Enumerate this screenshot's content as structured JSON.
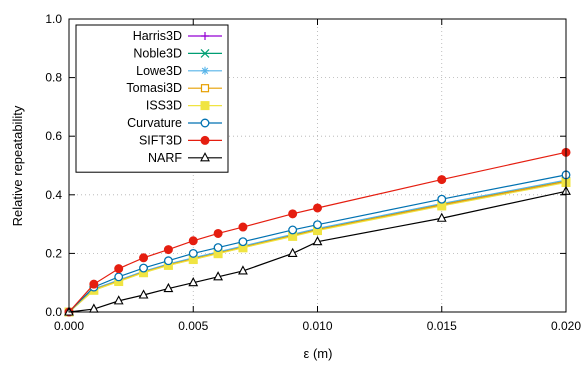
{
  "chart_data": {
    "type": "line",
    "xlabel": "ε (m)",
    "ylabel": "Relative repeatability",
    "xlim": [
      0,
      0.02
    ],
    "ylim": [
      0,
      1
    ],
    "xticks": [
      "0.000",
      "0.005",
      "0.010",
      "0.015",
      "0.020"
    ],
    "xtick_values": [
      0,
      0.005,
      0.01,
      0.015,
      0.02
    ],
    "yticks": [
      "0.0",
      "0.2",
      "0.4",
      "0.6",
      "0.8",
      "1.0"
    ],
    "ytick_values": [
      0,
      0.2,
      0.4,
      0.6,
      0.8,
      1.0
    ],
    "grid": true,
    "legend_position": "top-left",
    "x": [
      0,
      0.001,
      0.002,
      0.003,
      0.004,
      0.005,
      0.006,
      0.007,
      0.009,
      0.01,
      0.015,
      0.02
    ],
    "series": [
      {
        "name": "Harris3D",
        "color": "#9400d3",
        "marker": "plus",
        "values": [
          0,
          0.075,
          0.105,
          0.135,
          0.16,
          0.18,
          0.2,
          0.22,
          0.26,
          0.28,
          0.365,
          0.445
        ]
      },
      {
        "name": "Noble3D",
        "color": "#009e73",
        "marker": "cross",
        "values": [
          0,
          0.077,
          0.107,
          0.137,
          0.162,
          0.182,
          0.202,
          0.222,
          0.262,
          0.282,
          0.367,
          0.447
        ]
      },
      {
        "name": "Lowe3D",
        "color": "#56b4e9",
        "marker": "star",
        "values": [
          0,
          0.079,
          0.109,
          0.139,
          0.164,
          0.185,
          0.205,
          0.225,
          0.265,
          0.285,
          0.37,
          0.45
        ]
      },
      {
        "name": "Tomasi3D",
        "color": "#e69f00",
        "marker": "square-open",
        "values": [
          0,
          0.076,
          0.106,
          0.136,
          0.161,
          0.181,
          0.201,
          0.221,
          0.261,
          0.281,
          0.366,
          0.446
        ]
      },
      {
        "name": "ISS3D",
        "color": "#f0e442",
        "marker": "square-filled",
        "values": [
          0,
          0.074,
          0.104,
          0.134,
          0.159,
          0.179,
          0.199,
          0.219,
          0.258,
          0.278,
          0.362,
          0.442
        ]
      },
      {
        "name": "Curvature",
        "color": "#0072b2",
        "marker": "circle-open",
        "values": [
          0,
          0.085,
          0.12,
          0.15,
          0.175,
          0.2,
          0.22,
          0.24,
          0.28,
          0.298,
          0.385,
          0.468
        ]
      },
      {
        "name": "SIFT3D",
        "color": "#e51e10",
        "marker": "circle-filled",
        "values": [
          0,
          0.095,
          0.148,
          0.185,
          0.213,
          0.243,
          0.268,
          0.29,
          0.335,
          0.355,
          0.452,
          0.545
        ]
      },
      {
        "name": "NARF",
        "color": "#000000",
        "marker": "triangle-open",
        "values": [
          0,
          0.01,
          0.038,
          0.058,
          0.08,
          0.1,
          0.12,
          0.14,
          0.2,
          0.24,
          0.32,
          0.412
        ]
      }
    ]
  }
}
